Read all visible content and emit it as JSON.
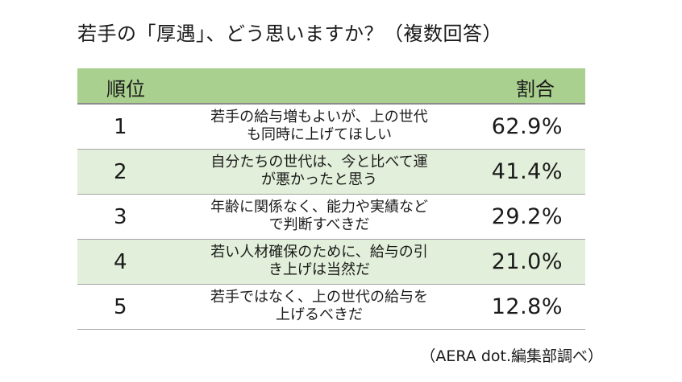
{
  "title": "若手の「厚遇」、どう思いますか？（複数回答）",
  "chart_data": {
    "type": "table",
    "header": {
      "rank": "順位",
      "share": "割合"
    },
    "rows": [
      {
        "rank": "1",
        "item_line1": "若手の給与増もよいが、上の世代",
        "item_line2": "も同時に上げてほしい",
        "share": "62.9%",
        "value": 62.9
      },
      {
        "rank": "2",
        "item_line1": "自分たちの世代は、今と比べて運",
        "item_line2": "が悪かったと思う",
        "share": "41.4%",
        "value": 41.4
      },
      {
        "rank": "3",
        "item_line1": "年齢に関係なく、能力や実績など",
        "item_line2": "で判断すべきだ",
        "share": "29.2%",
        "value": 29.2
      },
      {
        "rank": "4",
        "item_line1": "若い人材確保のために、給与の引",
        "item_line2": "き上げは当然だ",
        "share": "21.0%",
        "value": 21.0
      },
      {
        "rank": "5",
        "item_line1": "若手ではなく、上の世代の給与を",
        "item_line2": "上げるべきだ",
        "share": "12.8%",
        "value": 12.8
      }
    ],
    "colors": {
      "header_bg": "#a9d08e",
      "alt_row_bg": "#e2efda"
    }
  },
  "source": "（AERA dot.編集部調べ）"
}
